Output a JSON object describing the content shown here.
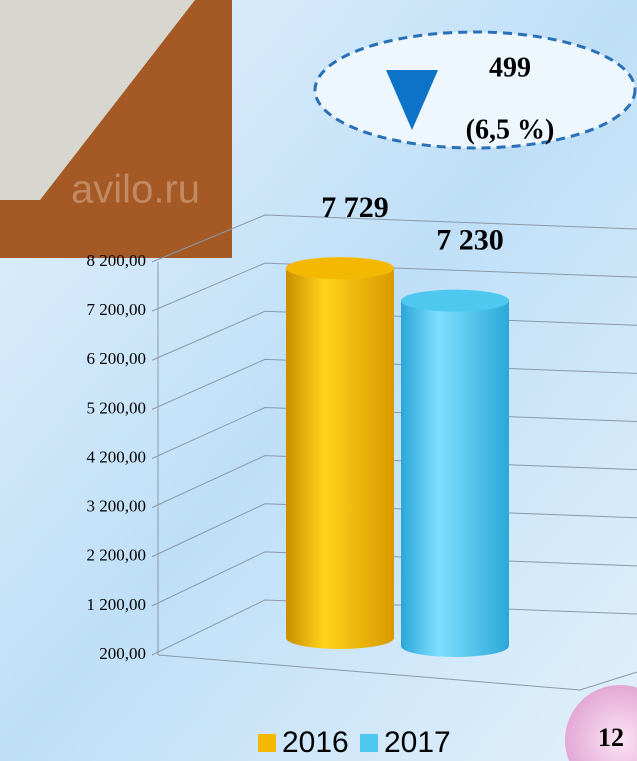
{
  "chart_data": {
    "type": "bar",
    "categories": [
      null
    ],
    "series": [
      {
        "name": "2016",
        "color": "#f5b800",
        "values": [
          7729
        ],
        "value_labels": [
          "7 729"
        ]
      },
      {
        "name": "2017",
        "color": "#4fc8f0",
        "values": [
          7230
        ],
        "value_labels": [
          "7 230"
        ]
      }
    ],
    "ylim": [
      200,
      8200
    ],
    "yticks": [
      {
        "value": 200,
        "label": "200,00"
      },
      {
        "value": 1200,
        "label": "1 200,00"
      },
      {
        "value": 2200,
        "label": "2 200,00"
      },
      {
        "value": 3200,
        "label": "3 200,00"
      },
      {
        "value": 4200,
        "label": "4 200,00"
      },
      {
        "value": 5200,
        "label": "5 200,00"
      },
      {
        "value": 6200,
        "label": "6 200,00"
      },
      {
        "value": 7200,
        "label": "7 200,00"
      },
      {
        "value": 8200,
        "label": "8 200,00"
      }
    ],
    "grid": true,
    "legend": "bottom",
    "annotations": [
      "499",
      "(6,5 %)"
    ]
  },
  "watermark": "avilo.ru",
  "page_number": "12"
}
